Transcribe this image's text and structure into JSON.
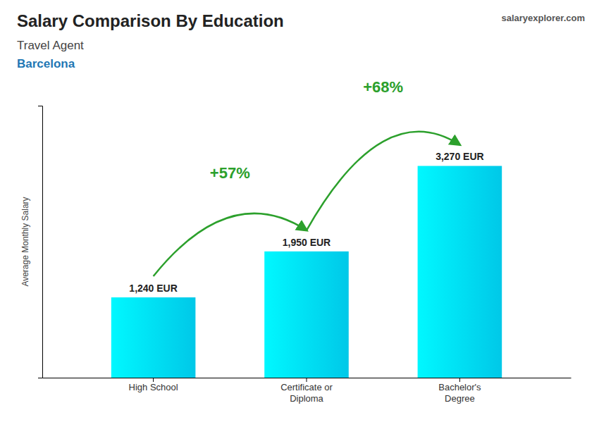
{
  "chart_data": {
    "type": "bar",
    "title": "Salary Comparison By Education",
    "subtitles": [
      "Travel Agent",
      "Barcelona"
    ],
    "source": "salaryexplorer.com",
    "ylabel": "Average Monthly Salary",
    "categories": [
      "High School",
      "Certificate or\nDiploma",
      "Bachelor's\nDegree"
    ],
    "values": [
      1240,
      1950,
      3270
    ],
    "value_labels": [
      "1,240 EUR",
      "1,950 EUR",
      "3,270 EUR"
    ],
    "data_labels": true,
    "annotations": [
      {
        "text": "+57%"
      },
      {
        "text": "+68%"
      }
    ],
    "color": "#00c8e8",
    "ylim": [
      0,
      4200
    ],
    "tick_labels": "x"
  }
}
